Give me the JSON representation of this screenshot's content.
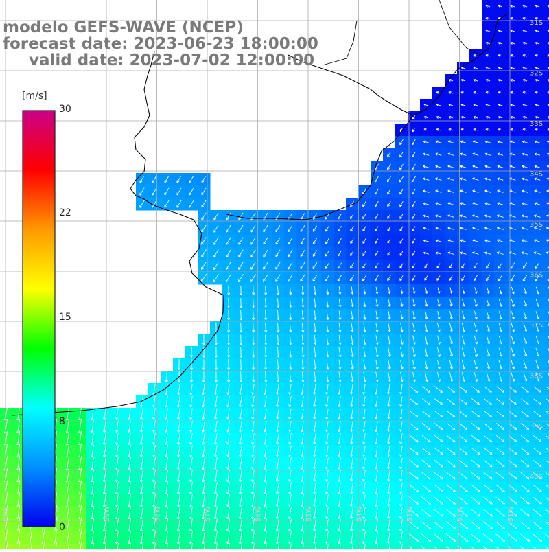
{
  "title": {
    "model": "modelo GEFS-WAVE (NCEP)",
    "forecast": "forecast date: 2023-06-23 18:00:00",
    "valid": "valid date: 2023-07-02 12:00:00"
  },
  "colorbar": {
    "unit": "[m/s]",
    "min": 0,
    "max": 30,
    "tick_labels": [
      "30",
      "22",
      "15",
      "8",
      "0"
    ],
    "colors": [
      "#0000ee",
      "#0090ff",
      "#00ffff",
      "#00ff00",
      "#ffff00",
      "#ff9900",
      "#ff0000",
      "#cc0088"
    ]
  },
  "map": {
    "lat_labels": [
      "31S",
      "32S",
      "33S",
      "34S",
      "35S",
      "36S",
      "37S",
      "38S",
      "39S",
      "40S"
    ],
    "lon_labels": [
      "61W",
      "60W",
      "59W",
      "58W",
      "57W",
      "56W",
      "55W",
      "54W",
      "53W",
      "52W",
      "51W"
    ],
    "grid_color": "#aaaaaa",
    "coast_color": "#000000",
    "arrow_color": "#ffffff"
  }
}
